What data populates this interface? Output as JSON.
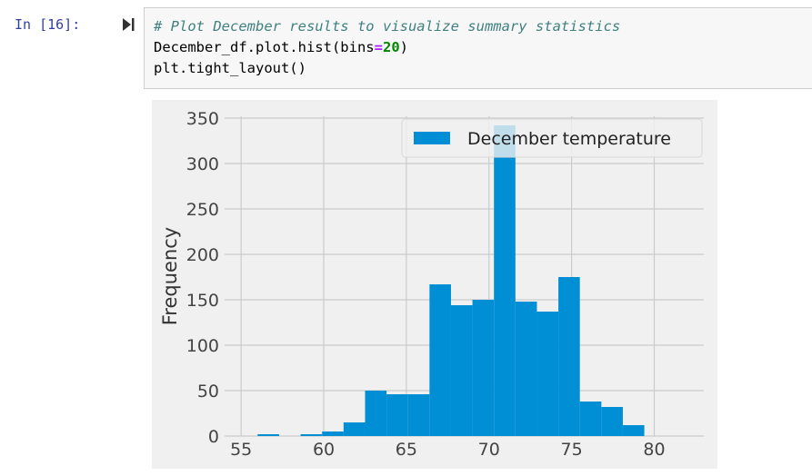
{
  "cell": {
    "prompt": "In [16]:",
    "code_lines": [
      [
        {
          "t": "# Plot December results to visualize summary statistics",
          "c": "cm"
        }
      ],
      [
        {
          "t": "December_df.plot.hist(bins",
          "c": ""
        },
        {
          "t": "=",
          "c": "eq"
        },
        {
          "t": "20",
          "c": "num"
        },
        {
          "t": ")",
          "c": ""
        }
      ],
      [
        {
          "t": "plt.tight_layout()",
          "c": ""
        }
      ]
    ]
  },
  "colors": {
    "bar": "#008fd5",
    "plot_bg": "#f0f0f0",
    "grid": "#cbcbcb",
    "prompt": "#303f9f"
  },
  "chart_data": {
    "type": "bar",
    "title": "",
    "xlabel": "",
    "ylabel": "Frequency",
    "xlim": [
      54,
      83
    ],
    "ylim": [
      0,
      352
    ],
    "xticks": [
      55,
      60,
      65,
      70,
      75,
      80
    ],
    "yticks": [
      0,
      50,
      100,
      150,
      200,
      250,
      300,
      350
    ],
    "grid": true,
    "legend_position": "top-right",
    "series": [
      {
        "name": "December temperature",
        "bin_edges": [
          56.0,
          57.3,
          58.6,
          59.9,
          61.2,
          62.5,
          63.8,
          65.1,
          66.4,
          67.7,
          69.0,
          70.3,
          71.6,
          72.9,
          74.2,
          75.5,
          76.8,
          78.1,
          79.4
        ],
        "bin_width": 1.3,
        "values": [
          2,
          0,
          2,
          5,
          15,
          50,
          46,
          46,
          167,
          144,
          150,
          342,
          148,
          137,
          175,
          38,
          32,
          12
        ]
      }
    ]
  }
}
